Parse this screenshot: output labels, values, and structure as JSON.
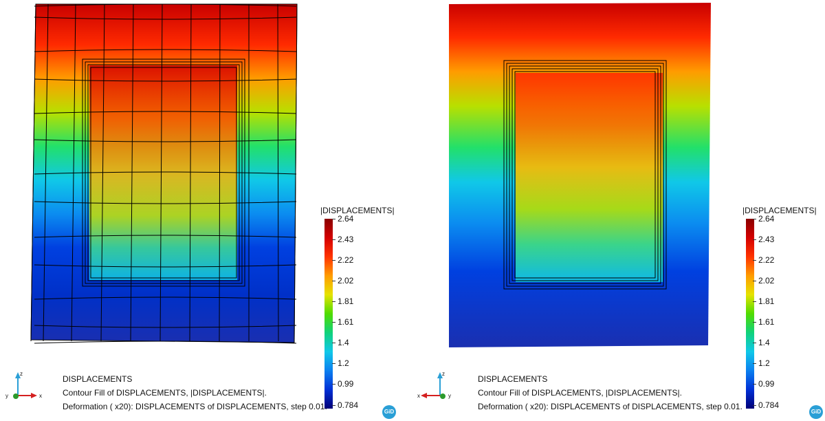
{
  "colors": {
    "contour_stops": [
      "#000078",
      "#0033d6",
      "#0b8cf0",
      "#10d2e8",
      "#22e06a",
      "#6fdc00",
      "#e5e300",
      "#ff9c00",
      "#ff3300",
      "#b80000",
      "#8a0000"
    ],
    "mesh_lines": "#000000",
    "gid_logo": "#2a9fd6"
  },
  "icons": {
    "axes": "xyz-axes-triad-icon",
    "logo": "gid-logo-icon"
  },
  "left_view": {
    "legend_title": "|DISPLACEMENTS|",
    "legend_ticks": [
      "2.64",
      "2.43",
      "2.22",
      "2.02",
      "1.81",
      "1.61",
      "1.4",
      "1.2",
      "0.99",
      "0.784"
    ],
    "info_lines": [
      "DISPLACEMENTS",
      "Contour Fill of DISPLACEMENTS, |DISPLACEMENTS|.",
      "Deformation ( x20): DISPLACEMENTS of DISPLACEMENTS, step 0.01."
    ],
    "axis_labels": {
      "z": "z",
      "x": "x",
      "y": "y"
    },
    "logo_text": "GiD"
  },
  "right_view": {
    "legend_title": "|DISPLACEMENTS|",
    "legend_ticks": [
      "2.64",
      "2.43",
      "2.22",
      "2.02",
      "1.81",
      "1.61",
      "1.4",
      "1.2",
      "0.99",
      "0.784"
    ],
    "info_lines": [
      "DISPLACEMENTS",
      "Contour Fill of DISPLACEMENTS, |DISPLACEMENTS|.",
      "Deformation ( x20): DISPLACEMENTS of DISPLACEMENTS, step 0.01."
    ],
    "axis_labels": {
      "z": "z",
      "x": "x",
      "y": "y"
    },
    "logo_text": "GiD"
  }
}
